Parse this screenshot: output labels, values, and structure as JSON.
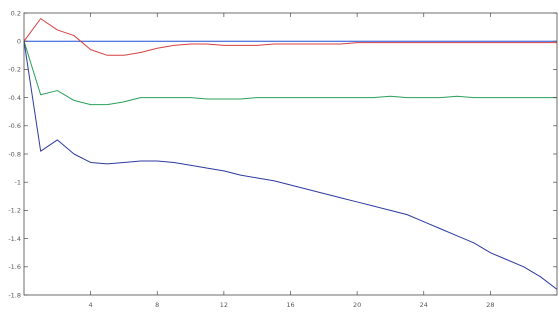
{
  "chart_data": {
    "type": "line",
    "title": "",
    "xlabel": "",
    "ylabel": "",
    "xlim": [
      0,
      32
    ],
    "ylim": [
      -1.8,
      0.2
    ],
    "grid": false,
    "x_ticks": [
      4,
      8,
      12,
      16,
      20,
      24,
      28
    ],
    "x_tick_labels": [
      "4",
      "8",
      "12",
      "16",
      "20",
      "24",
      "28"
    ],
    "y_ticks": [
      0.2,
      0,
      -0.2,
      -0.4,
      -0.6,
      -0.8,
      -1,
      -1.2,
      -1.4,
      -1.6,
      -1.8
    ],
    "y_tick_labels": [
      "0.2",
      "0",
      "-0.2",
      "-0.4",
      "-0.6",
      "-0.8",
      "-1",
      "-1.2",
      "-1.4",
      "-1.6",
      "-1.8"
    ],
    "x": [
      0,
      1,
      2,
      3,
      4,
      5,
      6,
      7,
      8,
      9,
      10,
      11,
      12,
      13,
      14,
      15,
      16,
      17,
      18,
      19,
      20,
      21,
      22,
      23,
      24,
      25,
      26,
      27,
      28,
      29,
      30,
      31,
      32
    ],
    "series": [
      {
        "color": "#1f4fd6",
        "values": [
          0,
          0,
          0,
          0,
          0,
          0,
          0,
          0,
          0,
          0,
          0,
          0,
          0,
          0,
          0,
          0,
          0,
          0,
          0,
          0,
          0,
          0,
          0,
          0,
          0,
          0,
          0,
          0,
          0,
          0,
          0,
          0,
          0
        ]
      },
      {
        "color": "#d64040",
        "values": [
          0,
          0.16,
          0.08,
          0.04,
          -0.06,
          -0.1,
          -0.1,
          -0.08,
          -0.05,
          -0.03,
          -0.02,
          -0.02,
          -0.03,
          -0.03,
          -0.03,
          -0.02,
          -0.02,
          -0.02,
          -0.02,
          -0.02,
          -0.01,
          -0.01,
          -0.01,
          -0.01,
          -0.01,
          -0.01,
          -0.01,
          -0.01,
          -0.01,
          -0.01,
          -0.01,
          -0.01,
          -0.01
        ]
      },
      {
        "color": "#2aa05a",
        "values": [
          0,
          -0.38,
          -0.35,
          -0.42,
          -0.45,
          -0.45,
          -0.43,
          -0.4,
          -0.4,
          -0.4,
          -0.4,
          -0.41,
          -0.41,
          -0.41,
          -0.4,
          -0.4,
          -0.4,
          -0.4,
          -0.4,
          -0.4,
          -0.4,
          -0.4,
          -0.39,
          -0.4,
          -0.4,
          -0.4,
          -0.39,
          -0.4,
          -0.4,
          -0.4,
          -0.4,
          -0.4,
          -0.4
        ]
      },
      {
        "color": "#2d3a9e",
        "values": [
          0,
          -0.78,
          -0.7,
          -0.8,
          -0.86,
          -0.87,
          -0.86,
          -0.85,
          -0.85,
          -0.86,
          -0.88,
          -0.9,
          -0.92,
          -0.95,
          -0.97,
          -0.99,
          -1.02,
          -1.05,
          -1.08,
          -1.11,
          -1.14,
          -1.17,
          -1.2,
          -1.23,
          -1.28,
          -1.33,
          -1.38,
          -1.43,
          -1.5,
          -1.55,
          -1.6,
          -1.67,
          -1.76
        ]
      }
    ]
  }
}
